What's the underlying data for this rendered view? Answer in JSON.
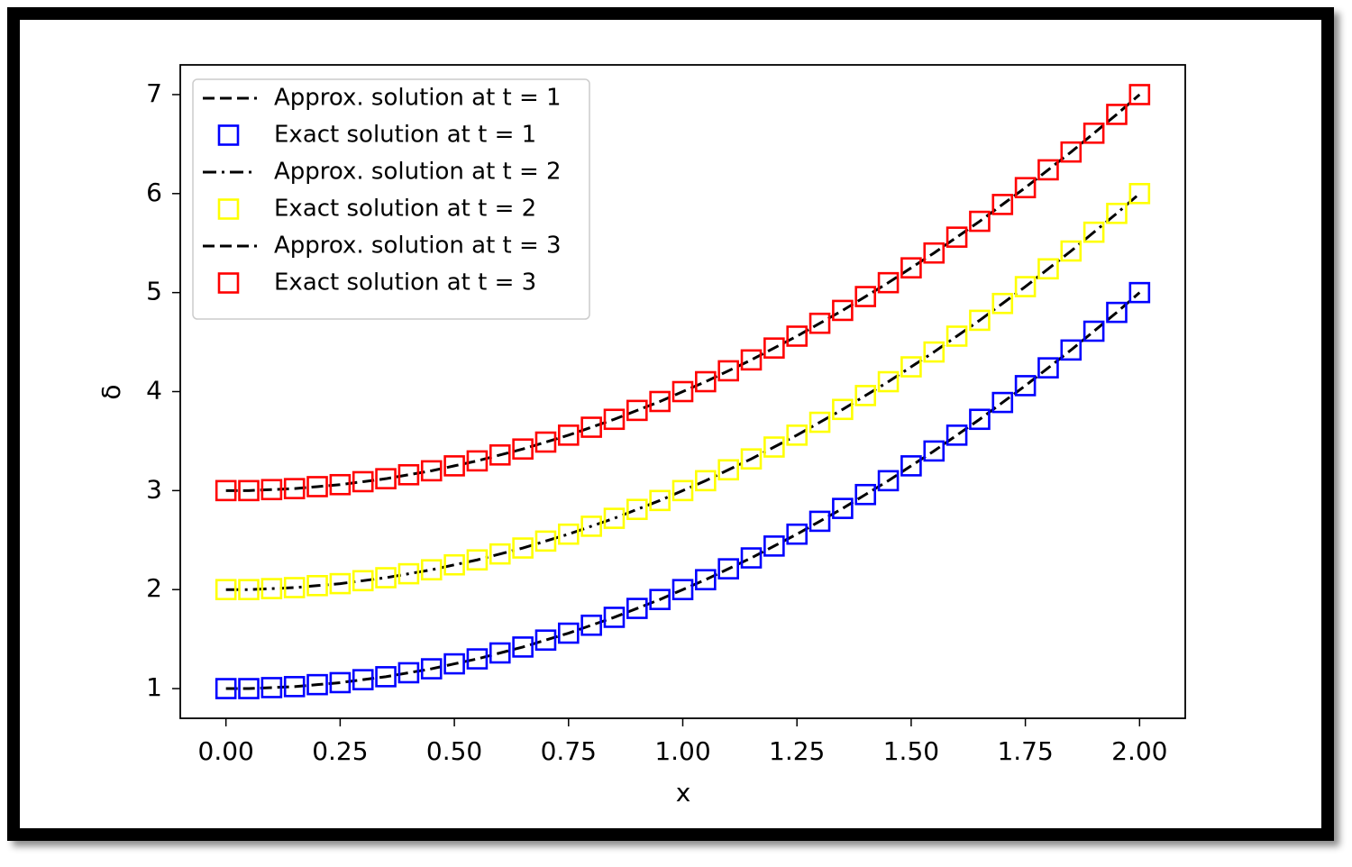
{
  "chart_data": {
    "type": "line",
    "x_label": "x",
    "y_label": "δ",
    "x": [
      0,
      0.05,
      0.1,
      0.15,
      0.2,
      0.25,
      0.3,
      0.35,
      0.4,
      0.45,
      0.5,
      0.55,
      0.6,
      0.65,
      0.7,
      0.75,
      0.8,
      0.85,
      0.9,
      0.95,
      1,
      1.05,
      1.1,
      1.15,
      1.2,
      1.25,
      1.3,
      1.35,
      1.4,
      1.45,
      1.5,
      1.55,
      1.6,
      1.65,
      1.7,
      1.75,
      1.8,
      1.85,
      1.9,
      1.95,
      2
    ],
    "xlim": [
      -0.1,
      2.1
    ],
    "ylim": [
      0.7,
      7.3
    ],
    "xticks": [
      {
        "value": 0,
        "label": "0.00"
      },
      {
        "value": 0.25,
        "label": "0.25"
      },
      {
        "value": 0.5,
        "label": "0.50"
      },
      {
        "value": 0.75,
        "label": "0.75"
      },
      {
        "value": 1,
        "label": "1.00"
      },
      {
        "value": 1.25,
        "label": "1.25"
      },
      {
        "value": 1.5,
        "label": "1.50"
      },
      {
        "value": 1.75,
        "label": "1.75"
      },
      {
        "value": 2,
        "label": "2.00"
      }
    ],
    "yticks": [
      1,
      2,
      3,
      4,
      5,
      6,
      7
    ],
    "legend": "upper left",
    "grid": false,
    "series": [
      {
        "name": "Approx. solution at t = 1",
        "color": "#000000",
        "linestyle": "dashed",
        "values": [
          1,
          1,
          1.01,
          1.02,
          1.04,
          1.06,
          1.09,
          1.12,
          1.16,
          1.2,
          1.25,
          1.3,
          1.36,
          1.42,
          1.49,
          1.56,
          1.64,
          1.72,
          1.81,
          1.9,
          2,
          2.1,
          2.21,
          2.32,
          2.44,
          2.56,
          2.69,
          2.82,
          2.96,
          3.1,
          3.25,
          3.4,
          3.56,
          3.72,
          3.89,
          4.06,
          4.24,
          4.42,
          4.61,
          4.8,
          5
        ]
      },
      {
        "name": "Exact solution at t = 1",
        "color": "#0000ff",
        "marker": "square",
        "values": [
          1,
          1,
          1.01,
          1.02,
          1.04,
          1.06,
          1.09,
          1.12,
          1.16,
          1.2,
          1.25,
          1.3,
          1.36,
          1.42,
          1.49,
          1.56,
          1.64,
          1.72,
          1.81,
          1.9,
          2,
          2.1,
          2.21,
          2.32,
          2.44,
          2.56,
          2.69,
          2.82,
          2.96,
          3.1,
          3.25,
          3.4,
          3.56,
          3.72,
          3.89,
          4.06,
          4.24,
          4.42,
          4.61,
          4.8,
          5
        ]
      },
      {
        "name": "Approx. solution at t = 2",
        "color": "#000000",
        "linestyle": "dashdot",
        "values": [
          2,
          2,
          2.01,
          2.02,
          2.04,
          2.06,
          2.09,
          2.12,
          2.16,
          2.2,
          2.25,
          2.3,
          2.36,
          2.42,
          2.49,
          2.56,
          2.64,
          2.72,
          2.81,
          2.9,
          3,
          3.1,
          3.21,
          3.32,
          3.44,
          3.56,
          3.69,
          3.82,
          3.96,
          4.1,
          4.25,
          4.4,
          4.56,
          4.72,
          4.89,
          5.06,
          5.24,
          5.42,
          5.61,
          5.8,
          6
        ]
      },
      {
        "name": "Exact solution at t = 2",
        "color": "#ffff00",
        "marker": "square",
        "values": [
          2,
          2,
          2.01,
          2.02,
          2.04,
          2.06,
          2.09,
          2.12,
          2.16,
          2.2,
          2.25,
          2.3,
          2.36,
          2.42,
          2.49,
          2.56,
          2.64,
          2.72,
          2.81,
          2.9,
          3,
          3.1,
          3.21,
          3.32,
          3.44,
          3.56,
          3.69,
          3.82,
          3.96,
          4.1,
          4.25,
          4.4,
          4.56,
          4.72,
          4.89,
          5.06,
          5.24,
          5.42,
          5.61,
          5.8,
          6
        ]
      },
      {
        "name": "Approx. solution at t = 3",
        "color": "#000000",
        "linestyle": "dashed",
        "values": [
          3,
          3,
          3.01,
          3.02,
          3.04,
          3.06,
          3.09,
          3.12,
          3.16,
          3.2,
          3.25,
          3.3,
          3.36,
          3.42,
          3.49,
          3.56,
          3.64,
          3.72,
          3.81,
          3.9,
          4,
          4.1,
          4.21,
          4.32,
          4.44,
          4.56,
          4.69,
          4.82,
          4.96,
          5.1,
          5.25,
          5.4,
          5.56,
          5.72,
          5.89,
          6.06,
          6.24,
          6.42,
          6.61,
          6.8,
          7
        ]
      },
      {
        "name": "Exact solution at t = 3",
        "color": "#ff0000",
        "marker": "square",
        "values": [
          3,
          3,
          3.01,
          3.02,
          3.04,
          3.06,
          3.09,
          3.12,
          3.16,
          3.2,
          3.25,
          3.3,
          3.36,
          3.42,
          3.49,
          3.56,
          3.64,
          3.72,
          3.81,
          3.9,
          4,
          4.1,
          4.21,
          4.32,
          4.44,
          4.56,
          4.69,
          4.82,
          4.96,
          5.1,
          5.25,
          5.4,
          5.56,
          5.72,
          5.89,
          6.06,
          6.24,
          6.42,
          6.61,
          6.8,
          7
        ]
      }
    ]
  }
}
